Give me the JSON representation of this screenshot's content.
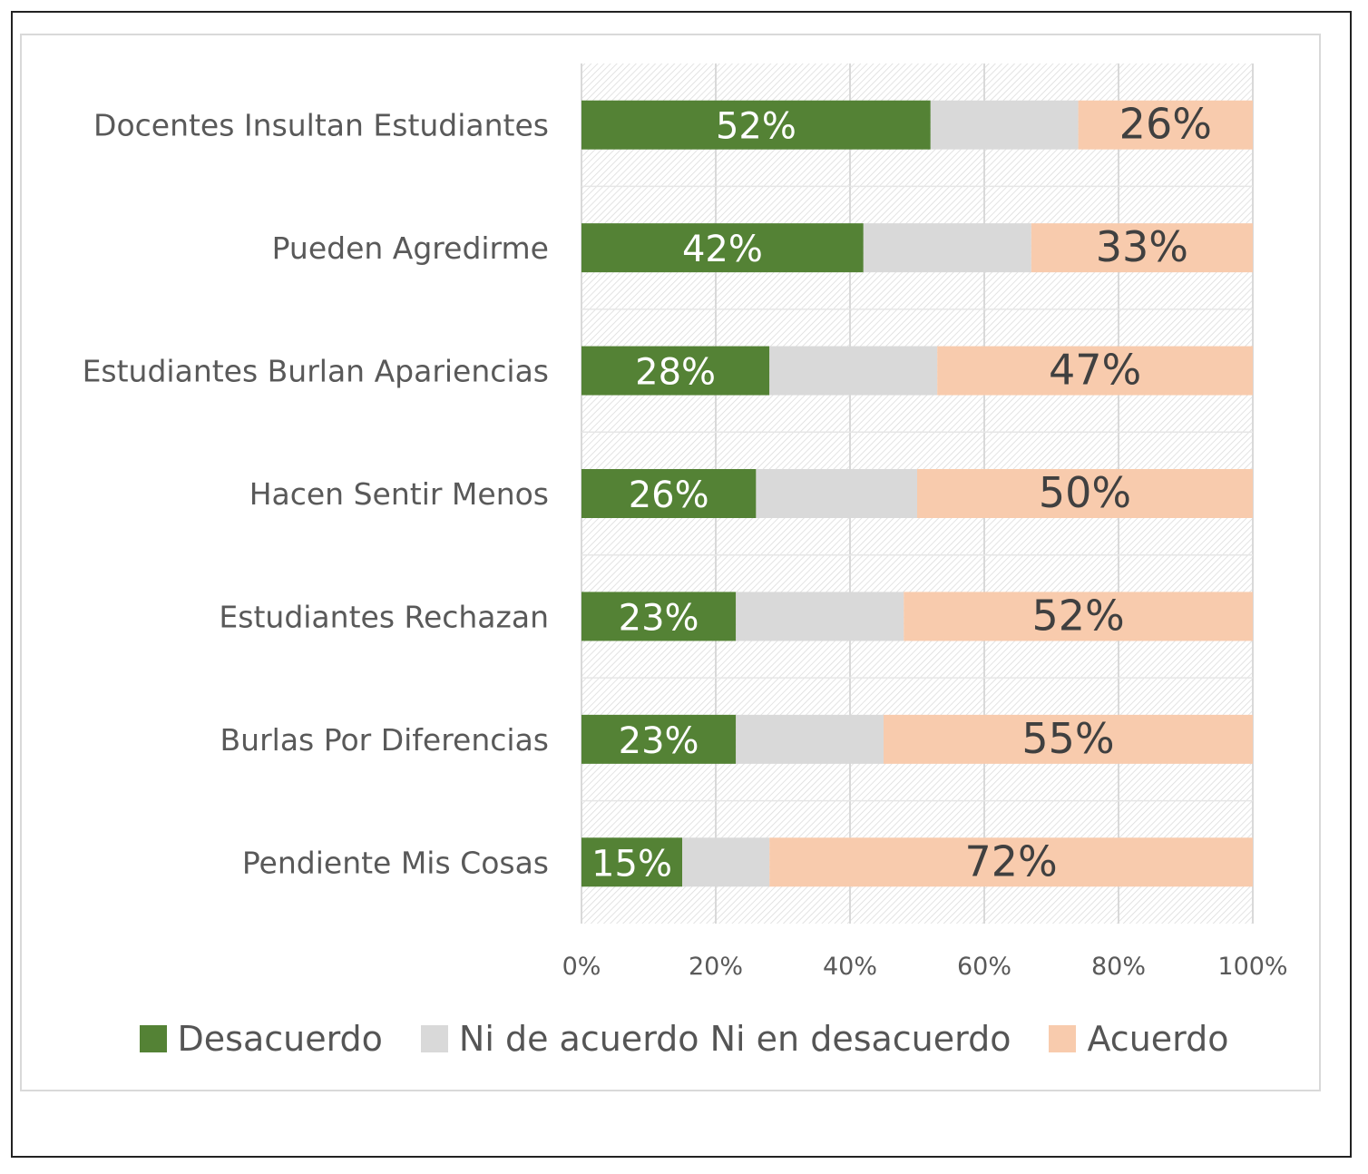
{
  "chart_data": {
    "type": "bar",
    "orientation": "horizontal",
    "stacked": "percent",
    "categories": [
      "Docentes Insultan Estudiantes",
      "Pueden Agredirme",
      "Estudiantes Burlan Apariencias",
      "Hacen Sentir Menos",
      "Estudiantes  Rechazan",
      "Burlas Por Diferencias",
      "Pendiente Mis Cosas"
    ],
    "series": [
      {
        "name": "Desacuerdo",
        "color": "#548235",
        "values": [
          52,
          42,
          28,
          26,
          23,
          23,
          15
        ],
        "labels": [
          "52%",
          "42%",
          "28%",
          "26%",
          "23%",
          "23%",
          "15%"
        ]
      },
      {
        "name": "Ni de acuerdo Ni en desacuerdo",
        "color": "#d9d9d9",
        "values": [
          22,
          25,
          25,
          24,
          25,
          22,
          13
        ],
        "labels": [
          "",
          "",
          "",
          "",
          "",
          "",
          ""
        ]
      },
      {
        "name": "Acuerdo",
        "color": "#f8cbad",
        "values": [
          26,
          33,
          47,
          50,
          52,
          55,
          72
        ],
        "labels": [
          "26%",
          "33%",
          "47%",
          "50%",
          "52%",
          "55%",
          "72%"
        ]
      }
    ],
    "xlim": [
      0,
      100
    ],
    "xticks": [
      "0%",
      "20%",
      "40%",
      "60%",
      "80%",
      "100%"
    ],
    "grid": true,
    "legend_position": "bottom"
  }
}
